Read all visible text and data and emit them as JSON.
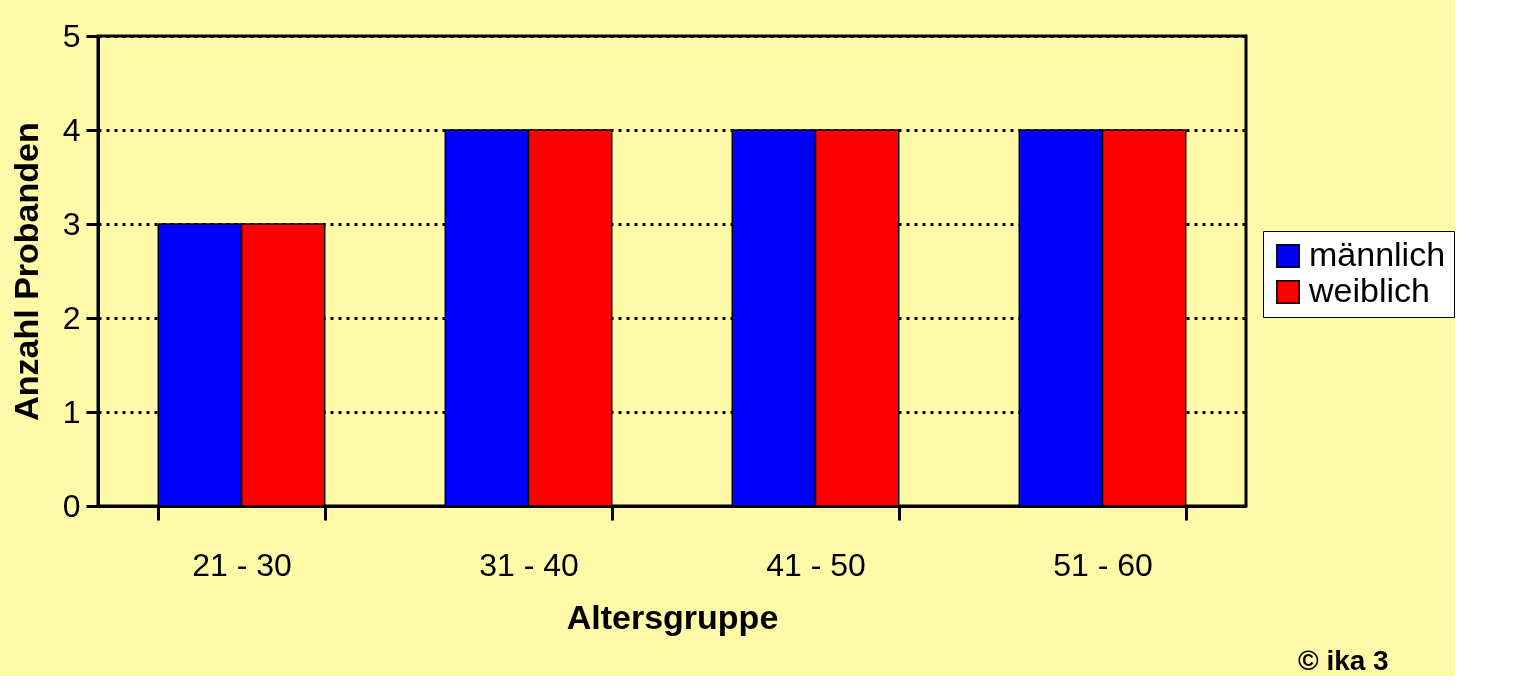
{
  "chart_data": {
    "type": "bar",
    "xlabel": "Altersgruppe",
    "ylabel": "Anzahl Probanden",
    "categories": [
      "21 - 30",
      "31 - 40",
      "41 - 50",
      "51 - 60"
    ],
    "series": [
      {
        "name": "männlich",
        "color": "#0000ff",
        "values": [
          3,
          4,
          4,
          4
        ]
      },
      {
        "name": "weiblich",
        "color": "#ff0000",
        "values": [
          3,
          4,
          4,
          4
        ]
      }
    ],
    "ylim": [
      0,
      5
    ],
    "yticks": [
      0,
      1,
      2,
      3,
      4,
      5
    ],
    "grid": "y",
    "legend": "right",
    "annotations": [
      "© ika  3"
    ]
  }
}
